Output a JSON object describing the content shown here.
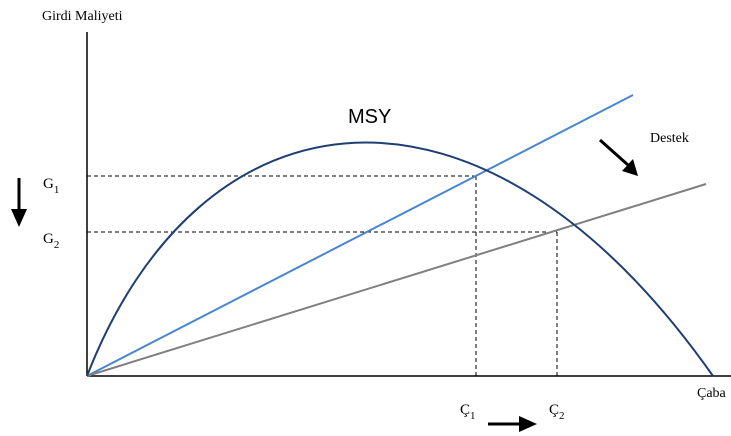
{
  "labels": {
    "y_axis": "Girdi Maliyeti",
    "x_axis": "Çaba",
    "curve": "MSY",
    "support": "Destek",
    "g1": "G",
    "g1_sub": "1",
    "g2": "G",
    "g2_sub": "2",
    "c1": "Ç",
    "c1_sub": "1",
    "c2": "Ç",
    "c2_sub": "2"
  },
  "colors": {
    "axis": "#000000",
    "yield_curve": "#1f3f73",
    "cost_line_high": "#4a86d0",
    "cost_line_low": "#808080",
    "guide_lines": "#000000"
  }
}
